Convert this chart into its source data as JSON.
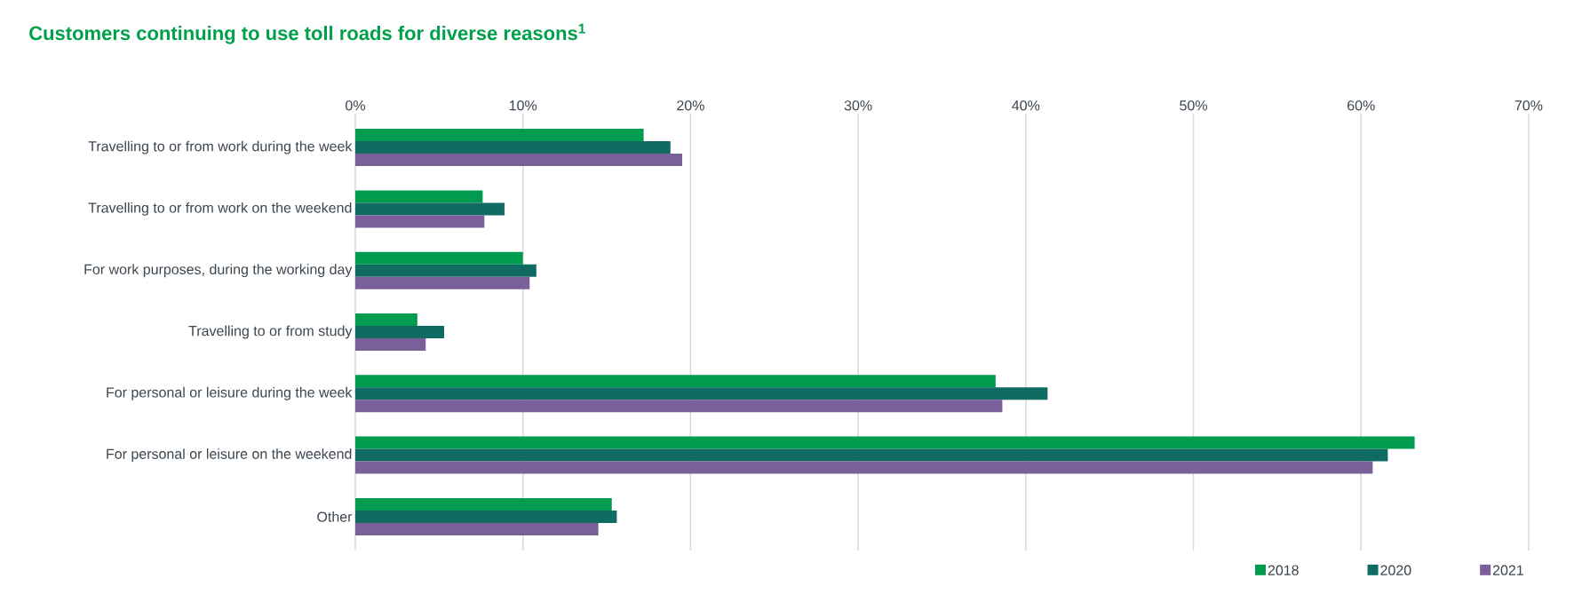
{
  "chart_data": {
    "type": "bar",
    "orientation": "horizontal",
    "title": "Customers continuing to use toll roads for diverse reasons$^{1}$",
    "categories": [
      "Travelling to or from work during the week",
      "Travelling to or from work on the weekend",
      "For work purposes, during the working day",
      "Travelling to or from study",
      "For personal or leisure during the week",
      "For personal or leisure on the weekend",
      "Other"
    ],
    "series": [
      {
        "name": "2018",
        "color": "#009b4e",
        "values": [
          17.2,
          7.6,
          10.0,
          3.7,
          38.2,
          63.2,
          15.3
        ]
      },
      {
        "name": "2020",
        "color": "#106b62",
        "values": [
          18.8,
          8.9,
          10.8,
          5.3,
          41.3,
          61.6,
          15.6
        ]
      },
      {
        "name": "2021",
        "color": "#7a5f99",
        "values": [
          19.5,
          7.7,
          10.4,
          4.2,
          38.6,
          60.7,
          14.5
        ]
      }
    ],
    "xlim": [
      0,
      70
    ],
    "xticks": [
      {
        "value": 0,
        "label": "0%"
      },
      {
        "value": 10,
        "label": "10%"
      },
      {
        "value": 20,
        "label": "20%"
      },
      {
        "value": 30,
        "label": "30%"
      },
      {
        "value": 40,
        "label": "40%"
      },
      {
        "value": 50,
        "label": "50%"
      },
      {
        "value": 60,
        "label": "60%"
      },
      {
        "value": 70,
        "label": "70%"
      }
    ],
    "grid": "x",
    "legend": "bottom right"
  }
}
